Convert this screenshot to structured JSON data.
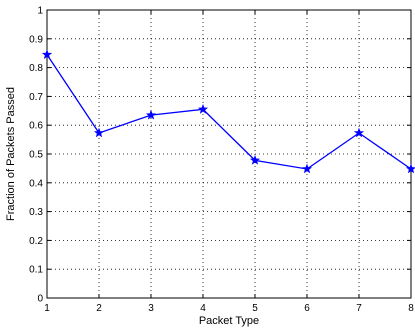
{
  "chart_data": {
    "type": "line",
    "title": "",
    "xlabel": "Packet Type",
    "ylabel": "Fraction of Packets Passed",
    "xlim": [
      1,
      8
    ],
    "ylim": [
      0,
      1
    ],
    "x_ticks": [
      "1",
      "2",
      "3",
      "4",
      "5",
      "6",
      "7",
      "8"
    ],
    "y_ticks": [
      "0",
      "0.1",
      "0.2",
      "0.3",
      "0.4",
      "0.5",
      "0.6",
      "0.7",
      "0.8",
      "0.9",
      "1"
    ],
    "grid": true,
    "grid_style": "dotted",
    "legend": "none",
    "series": [
      {
        "marker": "star",
        "color": "#0000ff",
        "x": [
          1,
          2,
          3,
          4,
          5,
          6,
          7,
          8
        ],
        "values": [
          0.845,
          0.573,
          0.635,
          0.655,
          0.478,
          0.448,
          0.573,
          0.448
        ]
      }
    ]
  }
}
